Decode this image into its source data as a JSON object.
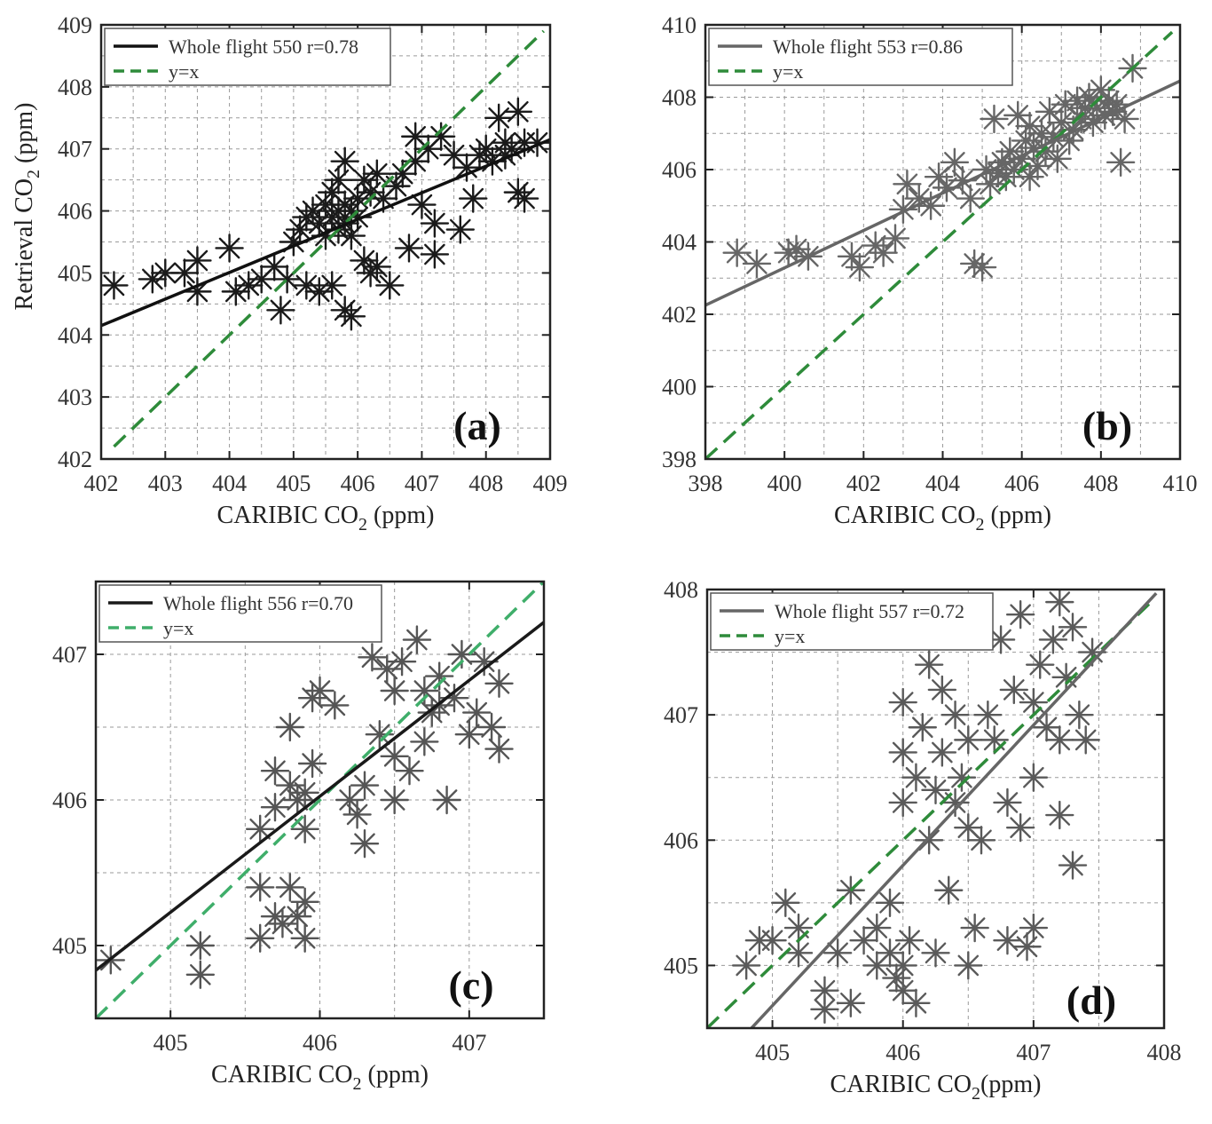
{
  "chart_data": [
    {
      "type": "scatter",
      "panel": "(a)",
      "xlabel": "CARIBIC CO",
      "xlabel_sub": "2",
      "xlabel_unit": " (ppm)",
      "ylabel": "Retrieval CO",
      "ylabel_sub": "2",
      "ylabel_unit": " (ppm)",
      "xlim": [
        402,
        409
      ],
      "ylim": [
        402,
        409
      ],
      "xticks": [
        402,
        403,
        404,
        405,
        406,
        407,
        408,
        409
      ],
      "yticks": [
        402,
        403,
        404,
        405,
        406,
        407,
        408,
        409
      ],
      "xgrid": [
        402.5,
        403,
        403.5,
        404,
        404.5,
        405,
        405.5,
        406,
        406.5,
        407,
        407.5,
        408,
        408.5
      ],
      "ygrid": [
        402.5,
        403,
        403.5,
        404,
        404.5,
        405,
        405.5,
        406,
        406.5,
        407,
        407.5,
        408,
        408.5
      ],
      "marker_color": "#1a1a1a",
      "fit_color": "#111111",
      "identity_color": "#2e8b3a",
      "legend": {
        "fit": "Whole flight 550  r=0.78",
        "identity": "y=x"
      },
      "fit_line": {
        "x": [
          402,
          409
        ],
        "y": [
          404.15,
          407.15
        ]
      },
      "identity_line": {
        "x": [
          402.2,
          408.9
        ],
        "y": [
          402.2,
          408.9
        ]
      },
      "points": [
        [
          402.2,
          404.8
        ],
        [
          402.8,
          404.9
        ],
        [
          403.0,
          405.0
        ],
        [
          403.3,
          405.0
        ],
        [
          403.5,
          404.7
        ],
        [
          403.5,
          405.2
        ],
        [
          404.0,
          405.4
        ],
        [
          404.1,
          404.7
        ],
        [
          404.3,
          404.8
        ],
        [
          404.5,
          404.9
        ],
        [
          404.7,
          405.1
        ],
        [
          404.8,
          404.4
        ],
        [
          404.9,
          404.9
        ],
        [
          405.0,
          405.5
        ],
        [
          405.1,
          405.7
        ],
        [
          405.2,
          405.9
        ],
        [
          405.2,
          404.8
        ],
        [
          405.3,
          406.0
        ],
        [
          405.4,
          405.8
        ],
        [
          405.4,
          404.7
        ],
        [
          405.5,
          406.1
        ],
        [
          405.5,
          405.6
        ],
        [
          405.6,
          405.9
        ],
        [
          405.6,
          406.3
        ],
        [
          405.6,
          404.8
        ],
        [
          405.7,
          406.0
        ],
        [
          405.7,
          405.7
        ],
        [
          405.7,
          406.5
        ],
        [
          405.8,
          406.1
        ],
        [
          405.8,
          405.8
        ],
        [
          405.8,
          406.8
        ],
        [
          405.8,
          404.4
        ],
        [
          405.9,
          406.0
        ],
        [
          405.9,
          405.6
        ],
        [
          405.9,
          404.3
        ],
        [
          406.0,
          406.2
        ],
        [
          406.0,
          405.9
        ],
        [
          406.1,
          405.2
        ],
        [
          406.1,
          406.5
        ],
        [
          406.2,
          406.3
        ],
        [
          406.2,
          405.0
        ],
        [
          406.3,
          405.1
        ],
        [
          406.3,
          406.6
        ],
        [
          406.4,
          406.2
        ],
        [
          406.5,
          404.8
        ],
        [
          406.6,
          406.4
        ],
        [
          406.7,
          406.6
        ],
        [
          406.8,
          405.4
        ],
        [
          406.9,
          406.8
        ],
        [
          406.9,
          407.2
        ],
        [
          407.0,
          406.1
        ],
        [
          407.1,
          407.0
        ],
        [
          407.2,
          405.8
        ],
        [
          407.2,
          405.3
        ],
        [
          407.3,
          407.2
        ],
        [
          407.5,
          406.9
        ],
        [
          407.6,
          405.7
        ],
        [
          407.7,
          406.7
        ],
        [
          407.8,
          406.2
        ],
        [
          407.9,
          406.9
        ],
        [
          408.0,
          407.0
        ],
        [
          408.1,
          406.8
        ],
        [
          408.2,
          407.5
        ],
        [
          408.3,
          407.1
        ],
        [
          408.3,
          406.9
        ],
        [
          408.4,
          407.0
        ],
        [
          408.5,
          407.6
        ],
        [
          408.5,
          406.3
        ],
        [
          408.6,
          406.2
        ],
        [
          408.6,
          407.1
        ],
        [
          408.8,
          407.1
        ]
      ]
    },
    {
      "type": "scatter",
      "panel": "(b)",
      "xlabel": "CARIBIC CO",
      "xlabel_sub": "2",
      "xlabel_unit": " (ppm)",
      "xlim": [
        398,
        410
      ],
      "ylim": [
        398,
        410
      ],
      "xticks": [
        398,
        400,
        402,
        404,
        406,
        408,
        410
      ],
      "yticks": [
        398,
        400,
        402,
        404,
        406,
        408,
        410
      ],
      "xgrid": [
        399,
        400,
        401,
        402,
        403,
        404,
        405,
        406,
        407,
        408,
        409
      ],
      "ygrid": [
        399,
        400,
        401,
        402,
        403,
        404,
        405,
        406,
        407,
        408,
        409
      ],
      "marker_color": "#666666",
      "fit_color": "#666666",
      "identity_color": "#2e8b3a",
      "legend": {
        "fit": "Whole flight 553  r=0.86",
        "identity": "y=x"
      },
      "fit_line": {
        "x": [
          398,
          410
        ],
        "y": [
          402.25,
          408.45
        ]
      },
      "identity_line": {
        "x": [
          398,
          409.8
        ],
        "y": [
          398,
          409.8
        ]
      },
      "points": [
        [
          398.8,
          403.7
        ],
        [
          399.3,
          403.4
        ],
        [
          400.1,
          403.7
        ],
        [
          400.3,
          403.8
        ],
        [
          400.6,
          403.6
        ],
        [
          401.7,
          403.6
        ],
        [
          401.9,
          403.3
        ],
        [
          402.3,
          403.9
        ],
        [
          402.5,
          403.7
        ],
        [
          402.8,
          404.1
        ],
        [
          403.0,
          404.9
        ],
        [
          403.1,
          405.6
        ],
        [
          403.4,
          405.2
        ],
        [
          403.7,
          405.0
        ],
        [
          403.9,
          405.8
        ],
        [
          404.1,
          405.5
        ],
        [
          404.3,
          406.2
        ],
        [
          404.5,
          405.7
        ],
        [
          404.7,
          405.2
        ],
        [
          404.8,
          403.4
        ],
        [
          405.0,
          403.3
        ],
        [
          405.1,
          406.0
        ],
        [
          405.2,
          405.6
        ],
        [
          405.3,
          407.4
        ],
        [
          405.4,
          405.9
        ],
        [
          405.5,
          406.2
        ],
        [
          405.6,
          405.8
        ],
        [
          405.7,
          406.5
        ],
        [
          405.8,
          406.0
        ],
        [
          405.9,
          407.5
        ],
        [
          406.0,
          406.3
        ],
        [
          406.1,
          406.8
        ],
        [
          406.2,
          405.8
        ],
        [
          406.2,
          407.2
        ],
        [
          406.3,
          406.6
        ],
        [
          406.4,
          406.1
        ],
        [
          406.5,
          407.0
        ],
        [
          406.6,
          406.5
        ],
        [
          406.7,
          407.6
        ],
        [
          406.8,
          406.9
        ],
        [
          406.9,
          406.3
        ],
        [
          407.0,
          407.3
        ],
        [
          407.1,
          407.8
        ],
        [
          407.2,
          406.8
        ],
        [
          407.3,
          407.1
        ],
        [
          407.4,
          407.9
        ],
        [
          407.5,
          407.4
        ],
        [
          407.6,
          407.7
        ],
        [
          407.7,
          408.0
        ],
        [
          407.8,
          407.3
        ],
        [
          407.9,
          407.7
        ],
        [
          408.0,
          408.2
        ],
        [
          408.1,
          407.5
        ],
        [
          408.2,
          407.9
        ],
        [
          408.3,
          407.6
        ],
        [
          408.4,
          407.8
        ],
        [
          408.5,
          406.2
        ],
        [
          408.6,
          407.4
        ],
        [
          408.8,
          408.8
        ]
      ]
    },
    {
      "type": "scatter",
      "panel": "(c)",
      "xlabel": "CARIBIC CO",
      "xlabel_sub": "2",
      "xlabel_unit": " (ppm)",
      "xlim": [
        404.5,
        407.5
      ],
      "ylim": [
        404.5,
        407.5
      ],
      "xticks": [
        405,
        406,
        407
      ],
      "yticks": [
        405,
        406,
        407
      ],
      "xgrid": [
        405,
        405.5,
        406,
        406.5,
        407
      ],
      "ygrid": [
        405,
        405.5,
        406,
        406.5,
        407
      ],
      "marker_color": "#555555",
      "fit_color": "#1a1a1a",
      "identity_color": "#3fae6a",
      "legend": {
        "fit": "Whole flight 556  r=0.70",
        "identity": "y=x"
      },
      "fit_line": {
        "x": [
          404.5,
          407.5
        ],
        "y": [
          404.83,
          407.22
        ]
      },
      "identity_line": {
        "x": [
          404.5,
          407.5
        ],
        "y": [
          404.5,
          407.5
        ]
      },
      "points": [
        [
          404.6,
          404.9
        ],
        [
          405.2,
          405.0
        ],
        [
          405.2,
          404.8
        ],
        [
          405.6,
          405.4
        ],
        [
          405.6,
          405.05
        ],
        [
          405.7,
          405.2
        ],
        [
          405.75,
          405.15
        ],
        [
          405.8,
          405.4
        ],
        [
          405.85,
          405.2
        ],
        [
          405.9,
          405.3
        ],
        [
          405.9,
          405.05
        ],
        [
          405.6,
          405.8
        ],
        [
          405.7,
          405.95
        ],
        [
          405.7,
          406.2
        ],
        [
          405.8,
          406.1
        ],
        [
          405.8,
          406.5
        ],
        [
          405.85,
          406.0
        ],
        [
          405.9,
          406.05
        ],
        [
          405.9,
          405.8
        ],
        [
          405.95,
          406.25
        ],
        [
          405.95,
          406.7
        ],
        [
          406.0,
          406.75
        ],
        [
          406.1,
          406.65
        ],
        [
          406.2,
          406.0
        ],
        [
          406.25,
          405.9
        ],
        [
          406.3,
          405.7
        ],
        [
          406.3,
          406.1
        ],
        [
          406.35,
          406.98
        ],
        [
          406.4,
          406.45
        ],
        [
          406.45,
          406.9
        ],
        [
          406.5,
          406.75
        ],
        [
          406.5,
          406.0
        ],
        [
          406.5,
          406.3
        ],
        [
          406.55,
          406.95
        ],
        [
          406.6,
          406.2
        ],
        [
          406.65,
          407.1
        ],
        [
          406.7,
          406.75
        ],
        [
          406.7,
          406.4
        ],
        [
          406.75,
          406.6
        ],
        [
          406.8,
          406.85
        ],
        [
          406.8,
          406.65
        ],
        [
          406.85,
          406.0
        ],
        [
          406.9,
          406.7
        ],
        [
          406.95,
          407.0
        ],
        [
          407.0,
          406.45
        ],
        [
          407.05,
          406.6
        ],
        [
          407.1,
          406.95
        ],
        [
          407.15,
          406.5
        ],
        [
          407.2,
          406.8
        ],
        [
          407.2,
          406.35
        ]
      ]
    },
    {
      "type": "scatter",
      "panel": "(d)",
      "xlabel": "CARIBIC CO",
      "xlabel_sub": "2",
      "xlabel_unit": "(ppm)",
      "xlim": [
        404.5,
        408
      ],
      "ylim": [
        404.5,
        408
      ],
      "xticks": [
        405,
        406,
        407,
        408
      ],
      "yticks": [
        405,
        406,
        407,
        408
      ],
      "xgrid": [
        405,
        405.5,
        406,
        406.5,
        407,
        407.5
      ],
      "ygrid": [
        405,
        405.5,
        406,
        406.5,
        407,
        407.5
      ],
      "marker_color": "#5a5a5a",
      "fit_color": "#666666",
      "identity_color": "#2e8b3a",
      "legend": {
        "fit": "Whole flight  557  r=0.72",
        "identity": "y=x"
      },
      "fit_line": {
        "x": [
          404.84,
          407.94
        ],
        "y": [
          404.5,
          407.97
        ]
      },
      "identity_line": {
        "x": [
          404.5,
          407.92
        ],
        "y": [
          404.5,
          407.92
        ]
      },
      "points": [
        [
          404.8,
          405.0
        ],
        [
          404.9,
          405.2
        ],
        [
          405.0,
          405.2
        ],
        [
          405.1,
          405.5
        ],
        [
          405.2,
          405.3
        ],
        [
          405.2,
          405.1
        ],
        [
          405.4,
          404.8
        ],
        [
          405.4,
          404.65
        ],
        [
          405.5,
          405.1
        ],
        [
          405.6,
          404.7
        ],
        [
          405.6,
          405.6
        ],
        [
          405.7,
          405.2
        ],
        [
          405.8,
          405.0
        ],
        [
          405.8,
          405.3
        ],
        [
          405.9,
          405.5
        ],
        [
          405.9,
          405.1
        ],
        [
          405.95,
          404.9
        ],
        [
          406.0,
          405.0
        ],
        [
          406.0,
          404.8
        ],
        [
          406.0,
          406.3
        ],
        [
          406.0,
          406.7
        ],
        [
          406.0,
          407.1
        ],
        [
          406.05,
          405.2
        ],
        [
          406.1,
          404.7
        ],
        [
          406.1,
          406.5
        ],
        [
          406.15,
          406.9
        ],
        [
          406.2,
          406.0
        ],
        [
          406.2,
          407.4
        ],
        [
          406.25,
          406.4
        ],
        [
          406.25,
          405.1
        ],
        [
          406.3,
          406.7
        ],
        [
          406.3,
          407.2
        ],
        [
          406.35,
          405.6
        ],
        [
          406.4,
          406.3
        ],
        [
          406.4,
          407.0
        ],
        [
          406.45,
          406.5
        ],
        [
          406.5,
          406.1
        ],
        [
          406.5,
          406.8
        ],
        [
          406.5,
          405.0
        ],
        [
          406.55,
          405.3
        ],
        [
          406.6,
          406.0
        ],
        [
          406.65,
          407.0
        ],
        [
          406.7,
          406.8
        ],
        [
          406.75,
          407.6
        ],
        [
          406.8,
          406.3
        ],
        [
          406.8,
          405.2
        ],
        [
          406.85,
          407.2
        ],
        [
          406.9,
          406.1
        ],
        [
          406.9,
          407.8
        ],
        [
          406.95,
          405.15
        ],
        [
          407.0,
          406.5
        ],
        [
          407.0,
          407.1
        ],
        [
          407.0,
          405.3
        ],
        [
          407.05,
          407.4
        ],
        [
          407.1,
          406.9
        ],
        [
          407.15,
          407.6
        ],
        [
          407.2,
          406.2
        ],
        [
          407.2,
          406.8
        ],
        [
          407.2,
          407.9
        ],
        [
          407.25,
          407.3
        ],
        [
          407.3,
          405.8
        ],
        [
          407.3,
          407.7
        ],
        [
          407.35,
          407.0
        ],
        [
          407.4,
          406.8
        ],
        [
          407.45,
          407.5
        ]
      ]
    }
  ]
}
